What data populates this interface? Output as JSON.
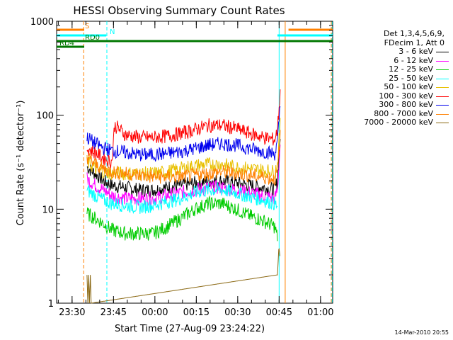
{
  "chart_data": {
    "type": "line",
    "title": "HESSI Observing Summary Count Rates",
    "xlabel": "Start Time (27-Aug-09 23:24:22)",
    "ylabel": "Count Rate (s⁻¹ detector⁻¹)",
    "yscale": "log",
    "ylim": [
      1,
      1000
    ],
    "xlim_minutes": [
      0,
      100
    ],
    "x_ticks": [
      {
        "label": "23:30",
        "t": 5.6
      },
      {
        "label": "23:45",
        "t": 20.6
      },
      {
        "label": "00:00",
        "t": 35.6
      },
      {
        "label": "00:15",
        "t": 50.6
      },
      {
        "label": "00:30",
        "t": 65.6
      },
      {
        "label": "00:45",
        "t": 80.6
      },
      {
        "label": "01:00",
        "t": 95.6
      }
    ],
    "y_ticks": [
      {
        "label": "1",
        "v": 1
      },
      {
        "label": "10",
        "v": 10
      },
      {
        "label": "100",
        "v": 100
      },
      {
        "label": "1000",
        "v": 1000
      }
    ],
    "legend_header": [
      "Det 1,3,4,5,6,9,",
      "FDecim 1, Att 0"
    ],
    "series": [
      {
        "name": "3 - 6 keV",
        "color": "#000000",
        "x": [
          11,
          14,
          17,
          20,
          25,
          30,
          35,
          40,
          45,
          50,
          55,
          60,
          65,
          70,
          75,
          79,
          80,
          81
        ],
        "y": [
          28,
          24,
          20,
          18,
          17,
          16,
          16,
          17,
          18,
          19,
          20,
          20,
          19,
          18,
          17,
          16,
          20,
          60
        ]
      },
      {
        "name": "6 - 12 keV",
        "color": "#ff00ff",
        "x": [
          11,
          14,
          17,
          20,
          25,
          30,
          35,
          40,
          45,
          50,
          55,
          60,
          65,
          70,
          75,
          79,
          80,
          81
        ],
        "y": [
          21,
          18,
          16,
          14,
          13,
          13,
          13,
          14,
          15,
          16,
          17,
          17,
          16,
          15,
          14,
          13,
          16,
          50
        ]
      },
      {
        "name": "12 - 25 keV",
        "color": "#00cc00",
        "x": [
          11,
          14,
          17,
          20,
          25,
          30,
          35,
          40,
          45,
          50,
          55,
          60,
          65,
          70,
          75,
          79,
          80
        ],
        "y": [
          9,
          8,
          7,
          6,
          5.5,
          5.5,
          5.5,
          6.5,
          8,
          10,
          11.5,
          11.5,
          10,
          8.5,
          7.5,
          6.5,
          5
        ]
      },
      {
        "name": "25 - 50 keV",
        "color": "#00ffff",
        "x": [
          11,
          14,
          17,
          20,
          25,
          30,
          35,
          40,
          45,
          50,
          55,
          60,
          65,
          70,
          75,
          79,
          80
        ],
        "y": [
          16,
          14,
          12.5,
          11.5,
          11,
          10.5,
          11,
          12,
          13,
          15,
          16,
          16,
          15,
          13.5,
          12.5,
          11.5,
          10.5
        ]
      },
      {
        "name": "50 - 100 keV",
        "color": "#e8c000",
        "x": [
          11,
          14,
          17,
          20,
          25,
          30,
          35,
          40,
          45,
          50,
          55,
          60,
          65,
          70,
          75,
          79,
          80,
          81
        ],
        "y": [
          32,
          27,
          25,
          24,
          24,
          24,
          24,
          25,
          27,
          29,
          30,
          30,
          28,
          27,
          26,
          25,
          30,
          80
        ]
      },
      {
        "name": "100 - 300 keV",
        "color": "#ff0000",
        "x": [
          11,
          14,
          17,
          20,
          21,
          25,
          30,
          35,
          40,
          45,
          50,
          55,
          60,
          65,
          70,
          75,
          79,
          80,
          81
        ],
        "y": [
          45,
          40,
          35,
          32,
          78,
          62,
          58,
          58,
          60,
          64,
          70,
          78,
          78,
          72,
          64,
          58,
          55,
          70,
          180
        ]
      },
      {
        "name": "300 - 800 keV",
        "color": "#0000ee",
        "x": [
          11,
          14,
          17,
          20,
          25,
          30,
          35,
          40,
          45,
          50,
          55,
          60,
          65,
          70,
          75,
          79,
          80,
          81
        ],
        "y": [
          58,
          50,
          45,
          42,
          40,
          38,
          38,
          39,
          41,
          44,
          48,
          50,
          48,
          44,
          41,
          39,
          50,
          130
        ]
      },
      {
        "name": "800 - 7000 keV",
        "color": "#ff8000",
        "x": [
          11,
          14,
          17,
          20,
          25,
          30,
          35,
          40,
          45,
          50,
          55,
          60,
          65,
          70,
          75,
          79,
          80,
          81
        ],
        "y": [
          36,
          30,
          27,
          25,
          24,
          23,
          22,
          22,
          22,
          23,
          24,
          25,
          24,
          23,
          22,
          21,
          25,
          60
        ]
      },
      {
        "name": "7000 - 20000 keV",
        "color": "#8b6914",
        "x": [
          11,
          11.3,
          11.6,
          11.9,
          12.2,
          12.5,
          80,
          80.5,
          81
        ],
        "y": [
          2,
          1,
          2,
          1,
          2,
          1,
          2,
          4,
          3
        ]
      }
    ],
    "state_bars": [
      {
        "label": "S",
        "color": "#ff8000",
        "segments": [
          [
            0,
            10
          ],
          [
            84,
            100
          ]
        ]
      },
      {
        "label": "N",
        "color": "#00ffff",
        "segments": [
          [
            0,
            18
          ],
          [
            80,
            100
          ]
        ]
      },
      {
        "label": "RD0",
        "color": "#007700",
        "segments": [
          [
            0,
            100
          ]
        ]
      },
      {
        "label": "RD4",
        "color": "#007700",
        "segments": [
          [
            0,
            10
          ]
        ]
      }
    ],
    "vertical_markers": [
      {
        "t": 9.8,
        "color": "#ff8000",
        "style": "dashed"
      },
      {
        "t": 18.2,
        "color": "#00ffff",
        "style": "dashed"
      },
      {
        "t": 80.6,
        "color": "#00ffff",
        "style": "solid"
      },
      {
        "t": 82.8,
        "color": "#ff8000",
        "style": "solid"
      },
      {
        "t": 99.5,
        "color": "#ff8000",
        "style": "dashed"
      },
      {
        "t": 99.8,
        "color": "#00ffff",
        "style": "dashed"
      }
    ],
    "timestamp": "14-Mar-2010 20:55"
  }
}
